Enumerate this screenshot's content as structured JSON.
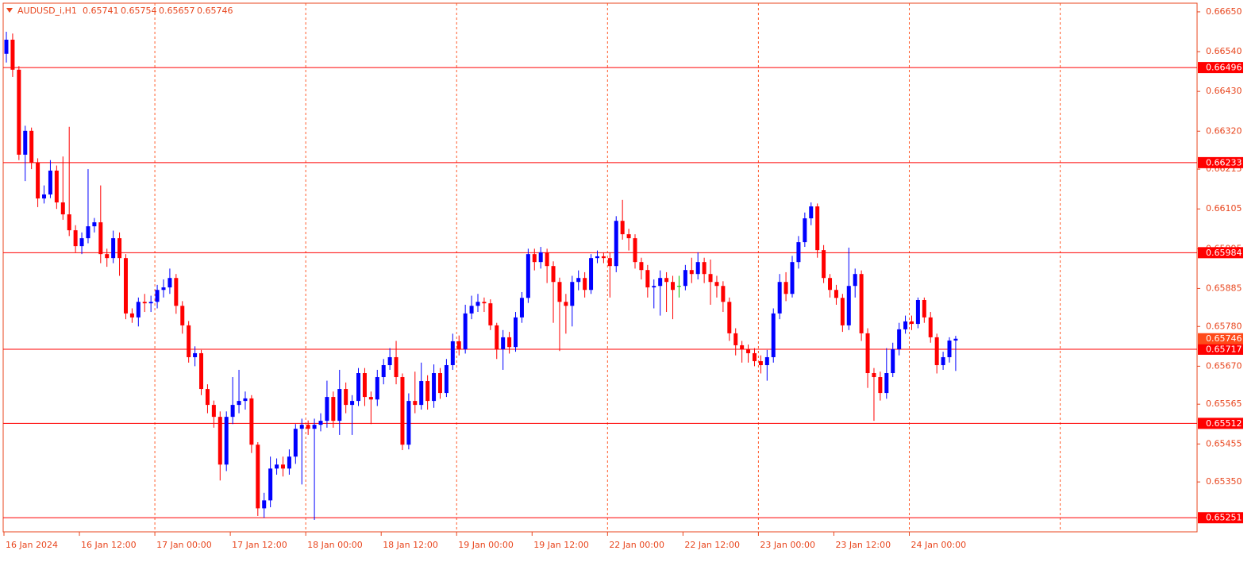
{
  "chart_data": {
    "type": "candlestick",
    "title": "AUDUSD_i,H1",
    "categories": [
      "16 Jan 2024",
      null,
      null,
      null,
      null,
      null,
      null,
      null,
      null,
      null,
      null,
      null,
      "16 Jan 12:00",
      null,
      null,
      null,
      null,
      null,
      null,
      null,
      null,
      null,
      null,
      null,
      "17 Jan 00:00",
      null,
      null,
      null,
      null,
      null,
      null,
      null,
      null,
      null,
      null,
      null,
      "17 Jan 12:00",
      null,
      null,
      null,
      null,
      null,
      null,
      null,
      null,
      null,
      null,
      null,
      "18 Jan 00:00",
      null,
      null,
      null,
      null,
      null,
      null,
      null,
      null,
      null,
      null,
      null,
      "18 Jan 12:00",
      null,
      null,
      null,
      null,
      null,
      null,
      null,
      null,
      null,
      null,
      null,
      "19 Jan 00:00",
      null,
      null,
      null,
      null,
      null,
      null,
      null,
      null,
      null,
      null,
      null,
      "19 Jan 12:00",
      null,
      null,
      null,
      null,
      null,
      null,
      null,
      null,
      null,
      null,
      null,
      "22 Jan 00:00",
      null,
      null,
      null,
      null,
      null,
      null,
      null,
      null,
      null,
      null,
      null,
      "22 Jan 12:00",
      null,
      null,
      null,
      null,
      null,
      null,
      null,
      null,
      null,
      null,
      null,
      "23 Jan 00:00",
      null,
      null,
      null,
      null,
      null,
      null,
      null,
      null,
      null,
      null,
      null,
      "23 Jan 12:00",
      null,
      null,
      null,
      null,
      null,
      null,
      null,
      null,
      null,
      null,
      null,
      "24 Jan 00:00",
      null,
      null,
      null,
      null,
      null,
      null,
      null
    ],
    "open": [
      0.66534,
      0.66573,
      0.6649,
      0.66255,
      0.66321,
      0.66233,
      0.66134,
      0.66145,
      0.66211,
      0.66123,
      0.6609,
      0.66046,
      0.66002,
      0.66024,
      0.66057,
      0.66068,
      0.6598,
      0.65969,
      0.66024,
      0.65969,
      0.65816,
      0.65805,
      0.65848,
      0.65844,
      0.65848,
      0.65881,
      0.65888,
      0.65914,
      0.65837,
      0.65783,
      0.65695,
      0.65706,
      0.65607,
      0.65563,
      0.6553,
      0.65398,
      0.6553,
      0.65563,
      0.65574,
      0.65581,
      0.65453,
      0.65277,
      0.65299,
      0.65387,
      0.65398,
      0.65387,
      0.6542,
      0.65497,
      0.65508,
      0.65497,
      0.65508,
      0.65519,
      0.65585,
      0.65519,
      0.65607,
      0.65563,
      0.65574,
      0.65651,
      0.65585,
      0.65578,
      0.6564,
      0.65673,
      0.65695,
      0.6564,
      0.65453,
      0.65574,
      0.65563,
      0.65629,
      0.65574,
      0.65651,
      0.65596,
      0.65673,
      0.65739,
      0.65717,
      0.65816,
      0.65837,
      0.65848,
      0.65844,
      0.65783,
      0.65717,
      0.6575,
      0.65723,
      0.65805,
      0.65859,
      0.6598,
      0.65958,
      0.65985,
      0.65947,
      0.65903,
      0.65848,
      0.65837,
      0.65903,
      0.65914,
      0.65881,
      0.65969,
      0.65974,
      0.65969,
      0.65947,
      0.66072,
      0.66035,
      0.66024,
      0.65958,
      0.65936,
      0.65888,
      0.65892,
      0.65914,
      0.65903,
      0.65892,
      0.65892,
      0.65936,
      0.65925,
      0.65958,
      0.65925,
      0.65903,
      0.65892,
      0.65848,
      0.65761,
      0.65728,
      0.65717,
      0.65706,
      0.65684,
      0.65673,
      0.65695,
      0.65816,
      0.65903,
      0.6587,
      0.65958,
      0.66013,
      0.66079,
      0.66112,
      0.65991,
      0.65914,
      0.65881,
      0.65859,
      0.65783,
      0.65892,
      0.65925,
      0.65761,
      0.65651,
      0.6564,
      0.65596,
      0.65651,
      0.65717,
      0.65772,
      0.65794,
      0.65787,
      0.65853,
      0.65805,
      0.6575,
      0.65673,
      0.65695,
      0.65741
    ],
    "high": [
      0.66595,
      0.6659,
      0.665,
      0.66335,
      0.6633,
      0.66245,
      0.6617,
      0.6624,
      0.66225,
      0.6625,
      0.66332,
      0.6606,
      0.6604,
      0.66215,
      0.6608,
      0.6617,
      0.65995,
      0.66045,
      0.6604,
      0.6598,
      0.6583,
      0.6586,
      0.6587,
      0.65865,
      0.65895,
      0.6591,
      0.6594,
      0.65925,
      0.6585,
      0.65795,
      0.65725,
      0.65715,
      0.6562,
      0.65575,
      0.65545,
      0.65545,
      0.6564,
      0.6566,
      0.656,
      0.6559,
      0.6546,
      0.6532,
      0.6542,
      0.65415,
      0.6542,
      0.6544,
      0.6551,
      0.65525,
      0.6552,
      0.65525,
      0.6554,
      0.6563,
      0.656,
      0.6566,
      0.65625,
      0.6559,
      0.65665,
      0.65665,
      0.656,
      0.6566,
      0.6569,
      0.6572,
      0.6574,
      0.6565,
      0.65595,
      0.65655,
      0.6568,
      0.65645,
      0.65675,
      0.65665,
      0.6569,
      0.6576,
      0.65755,
      0.6584,
      0.65865,
      0.6587,
      0.6586,
      0.65855,
      0.6579,
      0.6577,
      0.65765,
      0.6582,
      0.65875,
      0.65995,
      0.65995,
      0.66,
      0.65995,
      0.6596,
      0.65915,
      0.6587,
      0.6592,
      0.65935,
      0.6593,
      0.6598,
      0.6599,
      0.65985,
      0.65985,
      0.66085,
      0.6613,
      0.6605,
      0.66035,
      0.6597,
      0.6595,
      0.6591,
      0.65935,
      0.6593,
      0.6592,
      0.6592,
      0.6595,
      0.6597,
      0.65985,
      0.6597,
      0.65965,
      0.6592,
      0.65905,
      0.6586,
      0.65775,
      0.6574,
      0.6573,
      0.6572,
      0.657,
      0.65715,
      0.6583,
      0.65925,
      0.6593,
      0.65975,
      0.6603,
      0.66095,
      0.66123,
      0.6612,
      0.66005,
      0.65925,
      0.65895,
      0.6587,
      0.65998,
      0.6594,
      0.65935,
      0.65775,
      0.65665,
      0.65655,
      0.6572,
      0.65735,
      0.6579,
      0.6581,
      0.6581,
      0.6586,
      0.6586,
      0.6582,
      0.6576,
      0.6571,
      0.6575,
      0.65754
    ],
    "low": [
      0.6651,
      0.6647,
      0.6624,
      0.66182,
      0.66215,
      0.6611,
      0.6612,
      0.66135,
      0.66105,
      0.66075,
      0.6603,
      0.65985,
      0.6598,
      0.6601,
      0.6604,
      0.65955,
      0.65945,
      0.65955,
      0.6592,
      0.658,
      0.6579,
      0.6578,
      0.6582,
      0.6582,
      0.6583,
      0.6586,
      0.6587,
      0.65815,
      0.6576,
      0.6568,
      0.6567,
      0.6559,
      0.6554,
      0.655,
      0.65354,
      0.6538,
      0.6551,
      0.6554,
      0.6555,
      0.6543,
      0.65256,
      0.65251,
      0.6528,
      0.6537,
      0.65365,
      0.6537,
      0.654,
      0.65343,
      0.6548,
      0.65245,
      0.6549,
      0.655,
      0.655,
      0.6548,
      0.6554,
      0.6548,
      0.6556,
      0.6556,
      0.6551,
      0.6556,
      0.6562,
      0.6566,
      0.6562,
      0.65438,
      0.6544,
      0.6554,
      0.6555,
      0.6555,
      0.65555,
      0.6558,
      0.65585,
      0.6566,
      0.657,
      0.65705,
      0.658,
      0.6582,
      0.6582,
      0.6577,
      0.6569,
      0.6566,
      0.65705,
      0.6571,
      0.6579,
      0.65845,
      0.65935,
      0.6594,
      0.659,
      0.6579,
      0.65712,
      0.6576,
      0.6578,
      0.6588,
      0.6586,
      0.6587,
      0.65955,
      0.65955,
      0.6586,
      0.6593,
      0.6602,
      0.6599,
      0.6594,
      0.6591,
      0.6586,
      0.6583,
      0.6581,
      0.6582,
      0.658,
      0.6586,
      0.6588,
      0.659,
      0.6591,
      0.659,
      0.6584,
      0.6586,
      0.6582,
      0.6574,
      0.657,
      0.6568,
      0.6568,
      0.6567,
      0.6565,
      0.6563,
      0.6568,
      0.658,
      0.6585,
      0.6586,
      0.6594,
      0.66,
      0.6606,
      0.6597,
      0.659,
      0.6586,
      0.6584,
      0.65765,
      0.6577,
      0.6586,
      0.6574,
      0.6561,
      0.65519,
      0.65575,
      0.6558,
      0.6564,
      0.657,
      0.6576,
      0.6577,
      0.65775,
      0.6579,
      0.65735,
      0.6565,
      0.6566,
      0.6568,
      0.65657
    ],
    "close": [
      0.66573,
      0.6649,
      0.66255,
      0.66321,
      0.66233,
      0.66134,
      0.66145,
      0.66211,
      0.66123,
      0.6609,
      0.66046,
      0.66002,
      0.66024,
      0.66057,
      0.66068,
      0.6598,
      0.65969,
      0.66024,
      0.65969,
      0.65816,
      0.65805,
      0.65848,
      0.65844,
      0.65848,
      0.65881,
      0.65888,
      0.65914,
      0.65837,
      0.65783,
      0.65695,
      0.65706,
      0.65607,
      0.65563,
      0.6553,
      0.65398,
      0.6553,
      0.65563,
      0.65574,
      0.65581,
      0.65453,
      0.65277,
      0.65299,
      0.65387,
      0.65398,
      0.65387,
      0.6542,
      0.65497,
      0.65508,
      0.65497,
      0.65508,
      0.65519,
      0.65585,
      0.65519,
      0.65607,
      0.65563,
      0.65574,
      0.65651,
      0.65585,
      0.65578,
      0.6564,
      0.65673,
      0.65695,
      0.6564,
      0.65453,
      0.65574,
      0.65563,
      0.65629,
      0.65574,
      0.65651,
      0.65596,
      0.65673,
      0.65739,
      0.65717,
      0.65816,
      0.65837,
      0.65848,
      0.65844,
      0.65783,
      0.65717,
      0.6575,
      0.65723,
      0.65805,
      0.65859,
      0.6598,
      0.65958,
      0.65985,
      0.65947,
      0.65903,
      0.65848,
      0.65837,
      0.65903,
      0.65914,
      0.65881,
      0.65969,
      0.65974,
      0.65969,
      0.65947,
      0.66072,
      0.66035,
      0.66024,
      0.65958,
      0.65936,
      0.65888,
      0.65892,
      0.65914,
      0.65903,
      0.65881,
      0.65892,
      0.65936,
      0.65925,
      0.65958,
      0.65925,
      0.65903,
      0.65892,
      0.65848,
      0.65761,
      0.65728,
      0.65717,
      0.65706,
      0.65684,
      0.65673,
      0.65695,
      0.65816,
      0.65903,
      0.6587,
      0.65958,
      0.66013,
      0.66079,
      0.66112,
      0.65991,
      0.65914,
      0.65881,
      0.65859,
      0.65783,
      0.65892,
      0.65925,
      0.65761,
      0.65651,
      0.6564,
      0.65596,
      0.65651,
      0.65717,
      0.65772,
      0.65794,
      0.65787,
      0.65853,
      0.65805,
      0.6575,
      0.65673,
      0.65695,
      0.65741,
      0.65746
    ],
    "ylim": [
      0.65212,
      0.66674
    ],
    "yticks": [
      {
        "value": 0.6665,
        "label": "0.66650"
      },
      {
        "value": 0.6654,
        "label": "0.66540"
      },
      {
        "value": 0.6643,
        "label": "0.66430"
      },
      {
        "value": 0.6632,
        "label": "0.66320"
      },
      0.66215,
      0.66105,
      0.65995,
      0.65885,
      {
        "value": 0.6578,
        "label": "0.65780"
      },
      {
        "value": 0.6567,
        "label": "0.65670"
      },
      0.65565,
      0.65455,
      {
        "value": 0.6535,
        "label": "0.65350"
      }
    ],
    "hlines": [
      0.66496,
      0.66233,
      0.65984,
      0.65717,
      0.65512,
      0.65251
    ],
    "bull_color": "#0000ff",
    "bear_color": "#ff0000",
    "doji_color": "#00c000",
    "hline_color": "#ff0000",
    "separator_color": "#ff5a2a",
    "axis_color": "#e8461e",
    "bid_color": "#ff4a1a"
  }
}
